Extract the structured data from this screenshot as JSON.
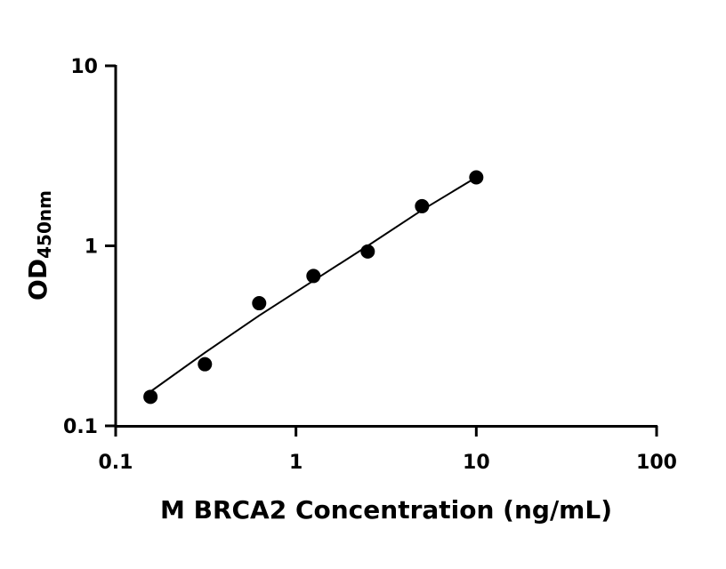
{
  "chart_data": {
    "type": "scatter",
    "title": "",
    "xlabel": "M BRCA2 Concentration (ng/mL)",
    "ylabel_main": "OD",
    "ylabel_sub": "450nm",
    "x_scale": "log",
    "y_scale": "log",
    "xlim": [
      0.1,
      100
    ],
    "ylim": [
      0.1,
      10
    ],
    "x_ticks": [
      0.1,
      1,
      10,
      100
    ],
    "x_tick_labels": [
      "0.1",
      "1",
      "10",
      "100"
    ],
    "y_ticks": [
      0.1,
      1,
      10
    ],
    "y_tick_labels": [
      "0.1",
      "1",
      "10"
    ],
    "grid": false,
    "series": [
      {
        "points": [
          {
            "x": 0.156,
            "y": 0.145
          },
          {
            "x": 0.3125,
            "y": 0.22
          },
          {
            "x": 0.625,
            "y": 0.48
          },
          {
            "x": 1.25,
            "y": 0.68
          },
          {
            "x": 2.5,
            "y": 0.93
          },
          {
            "x": 5,
            "y": 1.66
          },
          {
            "x": 10,
            "y": 2.4
          }
        ]
      }
    ],
    "fit_line": [
      {
        "x": 0.156,
        "y": 0.155
      },
      {
        "x": 0.3125,
        "y": 0.255
      },
      {
        "x": 0.625,
        "y": 0.41
      },
      {
        "x": 1.25,
        "y": 0.64
      },
      {
        "x": 2.5,
        "y": 1.0
      },
      {
        "x": 5,
        "y": 1.58
      },
      {
        "x": 10,
        "y": 2.4
      }
    ]
  }
}
